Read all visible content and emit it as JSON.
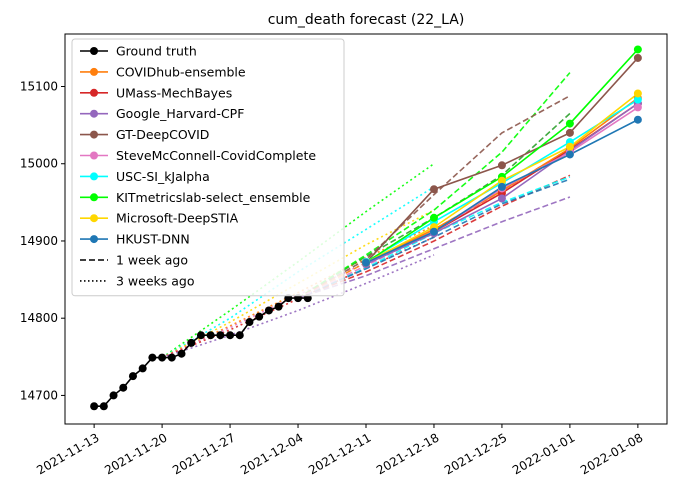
{
  "chart_data": {
    "type": "line",
    "title": "cum_death forecast (22_LA)",
    "xlabel": "",
    "ylabel": "",
    "x_ticks": [
      "2021-11-13",
      "2021-11-20",
      "2021-11-27",
      "2021-12-04",
      "2021-12-11",
      "2021-12-18",
      "2021-12-25",
      "2022-01-01",
      "2022-01-08"
    ],
    "y_ticks": [
      14700,
      14800,
      14900,
      15000,
      15100
    ],
    "xlim": [
      "2021-11-10",
      "2022-01-11"
    ],
    "ylim": [
      14663,
      15168
    ],
    "grid": false,
    "legend_position": "top-left",
    "legend": [
      {
        "label": "Ground truth",
        "color": "#000000",
        "style": "solid",
        "marker": true
      },
      {
        "label": "COVIDhub-ensemble",
        "color": "#ff7f0e",
        "style": "solid",
        "marker": true
      },
      {
        "label": "UMass-MechBayes",
        "color": "#d62728",
        "style": "solid",
        "marker": true
      },
      {
        "label": "Google_Harvard-CPF",
        "color": "#9467bd",
        "style": "solid",
        "marker": true
      },
      {
        "label": "GT-DeepCOVID",
        "color": "#8c564b",
        "style": "solid",
        "marker": true
      },
      {
        "label": "SteveMcConnell-CovidComplete",
        "color": "#e377c2",
        "style": "solid",
        "marker": true
      },
      {
        "label": "USC-SI_kJalpha",
        "color": "#00ffff",
        "style": "solid",
        "marker": true
      },
      {
        "label": "KITmetricslab-select_ensemble",
        "color": "#00ff00",
        "style": "solid",
        "marker": true
      },
      {
        "label": "Microsoft-DeepSTIA",
        "color": "#ffd700",
        "style": "solid",
        "marker": true
      },
      {
        "label": "HKUST-DNN",
        "color": "#1f77b4",
        "style": "solid",
        "marker": true
      },
      {
        "label": "1 week ago",
        "color": "#000000",
        "style": "dashed",
        "marker": false
      },
      {
        "label": "3 weeks ago",
        "color": "#000000",
        "style": "dotted",
        "marker": false
      }
    ],
    "ground_truth": {
      "name": "Ground truth",
      "color": "#000000",
      "x": [
        "2021-11-13",
        "2021-11-14",
        "2021-11-15",
        "2021-11-16",
        "2021-11-17",
        "2021-11-18",
        "2021-11-19",
        "2021-11-20",
        "2021-11-21",
        "2021-11-22",
        "2021-11-23",
        "2021-11-24",
        "2021-11-25",
        "2021-11-26",
        "2021-11-27",
        "2021-11-28",
        "2021-11-29",
        "2021-11-30",
        "2021-12-01",
        "2021-12-02",
        "2021-12-03",
        "2021-12-04",
        "2021-12-05"
      ],
      "y": [
        14686,
        14686,
        14700,
        14710,
        14725,
        14735,
        14749,
        14749,
        14749,
        14754,
        14768,
        14778,
        14778,
        14778,
        14778,
        14778,
        14795,
        14802,
        14810,
        14815,
        14826,
        14826,
        14826
      ]
    },
    "forecasts": [
      {
        "name": "COVIDhub-ensemble",
        "color": "#ff7f0e",
        "x": [
          "2021-12-11",
          "2021-12-18",
          "2021-12-25",
          "2022-01-01",
          "2022-01-08"
        ],
        "y": [
          14872,
          14915,
          14965,
          15020,
          15085
        ]
      },
      {
        "name": "UMass-MechBayes",
        "color": "#d62728",
        "x": [
          "2021-12-11",
          "2021-12-18",
          "2021-12-25",
          "2022-01-01",
          "2022-01-08"
        ],
        "y": [
          14872,
          14912,
          14962,
          15018,
          15078
        ]
      },
      {
        "name": "Google_Harvard-CPF",
        "color": "#9467bd",
        "x": [
          "2021-12-11",
          "2021-12-18",
          "2021-12-25",
          "2022-01-01",
          "2022-01-08"
        ],
        "y": [
          14870,
          14910,
          14955,
          15017,
          15078
        ]
      },
      {
        "name": "GT-DeepCOVID",
        "color": "#8c564b",
        "x": [
          "2021-12-11",
          "2021-12-18",
          "2021-12-25",
          "2022-01-01",
          "2022-01-08"
        ],
        "y": [
          14872,
          14967,
          14998,
          15040,
          15137
        ]
      },
      {
        "name": "SteveMcConnell-CovidComplete",
        "color": "#e377c2",
        "x": [
          "2021-12-11",
          "2021-12-18",
          "2021-12-25",
          "2022-01-01",
          "2022-01-08"
        ],
        "y": [
          14872,
          14912,
          14968,
          15015,
          15073
        ]
      },
      {
        "name": "USC-SI_kJalpha",
        "color": "#00ffff",
        "x": [
          "2021-12-11",
          "2021-12-18",
          "2021-12-25",
          "2022-01-01",
          "2022-01-08"
        ],
        "y": [
          14873,
          14925,
          14975,
          15028,
          15083
        ]
      },
      {
        "name": "KITmetricslab-select_ensemble",
        "color": "#00ff00",
        "x": [
          "2021-12-11",
          "2021-12-18",
          "2021-12-25",
          "2022-01-01",
          "2022-01-08"
        ],
        "y": [
          14872,
          14930,
          14983,
          15052,
          15148
        ]
      },
      {
        "name": "Microsoft-DeepSTIA",
        "color": "#ffd700",
        "x": [
          "2021-12-11",
          "2021-12-18",
          "2021-12-25",
          "2022-01-01",
          "2022-01-08"
        ],
        "y": [
          14872,
          14918,
          14978,
          15022,
          15091
        ]
      },
      {
        "name": "HKUST-DNN",
        "color": "#1f77b4",
        "x": [
          "2021-12-11",
          "2021-12-18",
          "2021-12-25",
          "2022-01-01",
          "2022-01-08"
        ],
        "y": [
          14872,
          14912,
          14970,
          15012,
          15057
        ]
      }
    ],
    "one_week_ago": [
      {
        "color": "#2ca02c",
        "x": [
          "2021-12-04",
          "2021-12-11",
          "2021-12-18",
          "2021-12-25",
          "2022-01-01"
        ],
        "y": [
          14826,
          14880,
          14930,
          14985,
          15065
        ]
      },
      {
        "color": "#00ff00",
        "x": [
          "2021-12-04",
          "2021-12-11",
          "2021-12-18",
          "2021-12-25",
          "2022-01-01"
        ],
        "y": [
          14826,
          14882,
          14940,
          15015,
          15118
        ]
      },
      {
        "color": "#8c564b",
        "x": [
          "2021-12-04",
          "2021-12-11",
          "2021-12-18",
          "2021-12-25",
          "2022-01-01"
        ],
        "y": [
          14826,
          14876,
          14960,
          15040,
          15088
        ]
      },
      {
        "color": "#ff7f0e",
        "x": [
          "2021-12-04",
          "2021-12-11",
          "2021-12-18",
          "2021-12-25",
          "2022-01-01"
        ],
        "y": [
          14826,
          14872,
          14915,
          14965,
          15020
        ]
      },
      {
        "color": "#d62728",
        "x": [
          "2021-12-04",
          "2021-12-11",
          "2021-12-18",
          "2021-12-25",
          "2022-01-01"
        ],
        "y": [
          14826,
          14860,
          14900,
          14945,
          14985
        ]
      },
      {
        "color": "#9467bd",
        "x": [
          "2021-12-04",
          "2021-12-11",
          "2021-12-18",
          "2021-12-25",
          "2022-01-01"
        ],
        "y": [
          14826,
          14855,
          14890,
          14925,
          14957
        ]
      },
      {
        "color": "#00ffff",
        "x": [
          "2021-12-04",
          "2021-12-11",
          "2021-12-18",
          "2021-12-25",
          "2022-01-01"
        ],
        "y": [
          14826,
          14865,
          14910,
          14950,
          14983
        ]
      },
      {
        "color": "#1f77b4",
        "x": [
          "2021-12-04",
          "2021-12-11",
          "2021-12-18",
          "2021-12-25",
          "2022-01-01"
        ],
        "y": [
          14826,
          14864,
          14905,
          14948,
          14980
        ]
      },
      {
        "color": "#e377c2",
        "x": [
          "2021-12-04",
          "2021-12-11",
          "2021-12-18",
          "2021-12-25",
          "2022-01-01"
        ],
        "y": [
          14826,
          14868,
          14912,
          14965,
          15015
        ]
      }
    ],
    "three_weeks_ago": [
      {
        "color": "#00ff00",
        "x": [
          "2021-11-20",
          "2021-11-27",
          "2021-12-04",
          "2021-12-11",
          "2021-12-18"
        ],
        "y": [
          14749,
          14810,
          14873,
          14938,
          15000
        ]
      },
      {
        "color": "#00ffff",
        "x": [
          "2021-11-20",
          "2021-11-27",
          "2021-12-04",
          "2021-12-11",
          "2021-12-18"
        ],
        "y": [
          14749,
          14800,
          14860,
          14915,
          14970
        ]
      },
      {
        "color": "#ffd700",
        "x": [
          "2021-11-20",
          "2021-11-27",
          "2021-12-04",
          "2021-12-11",
          "2021-12-18"
        ],
        "y": [
          14749,
          14795,
          14845,
          14895,
          14940
        ]
      },
      {
        "color": "#ff7f0e",
        "x": [
          "2021-11-20",
          "2021-11-27",
          "2021-12-04",
          "2021-12-11",
          "2021-12-18"
        ],
        "y": [
          14749,
          14790,
          14833,
          14878,
          14920
        ]
      },
      {
        "color": "#e377c2",
        "x": [
          "2021-11-20",
          "2021-11-27",
          "2021-12-04",
          "2021-12-11",
          "2021-12-18"
        ],
        "y": [
          14749,
          14788,
          14830,
          14872,
          14915
        ]
      },
      {
        "color": "#d62728",
        "x": [
          "2021-11-20",
          "2021-11-27",
          "2021-12-04",
          "2021-12-11",
          "2021-12-18"
        ],
        "y": [
          14749,
          14785,
          14825,
          14865,
          14905
        ]
      },
      {
        "color": "#9467bd",
        "x": [
          "2021-11-20",
          "2021-11-27",
          "2021-12-04",
          "2021-12-11",
          "2021-12-18"
        ],
        "y": [
          14749,
          14778,
          14810,
          14845,
          14882
        ]
      }
    ]
  }
}
